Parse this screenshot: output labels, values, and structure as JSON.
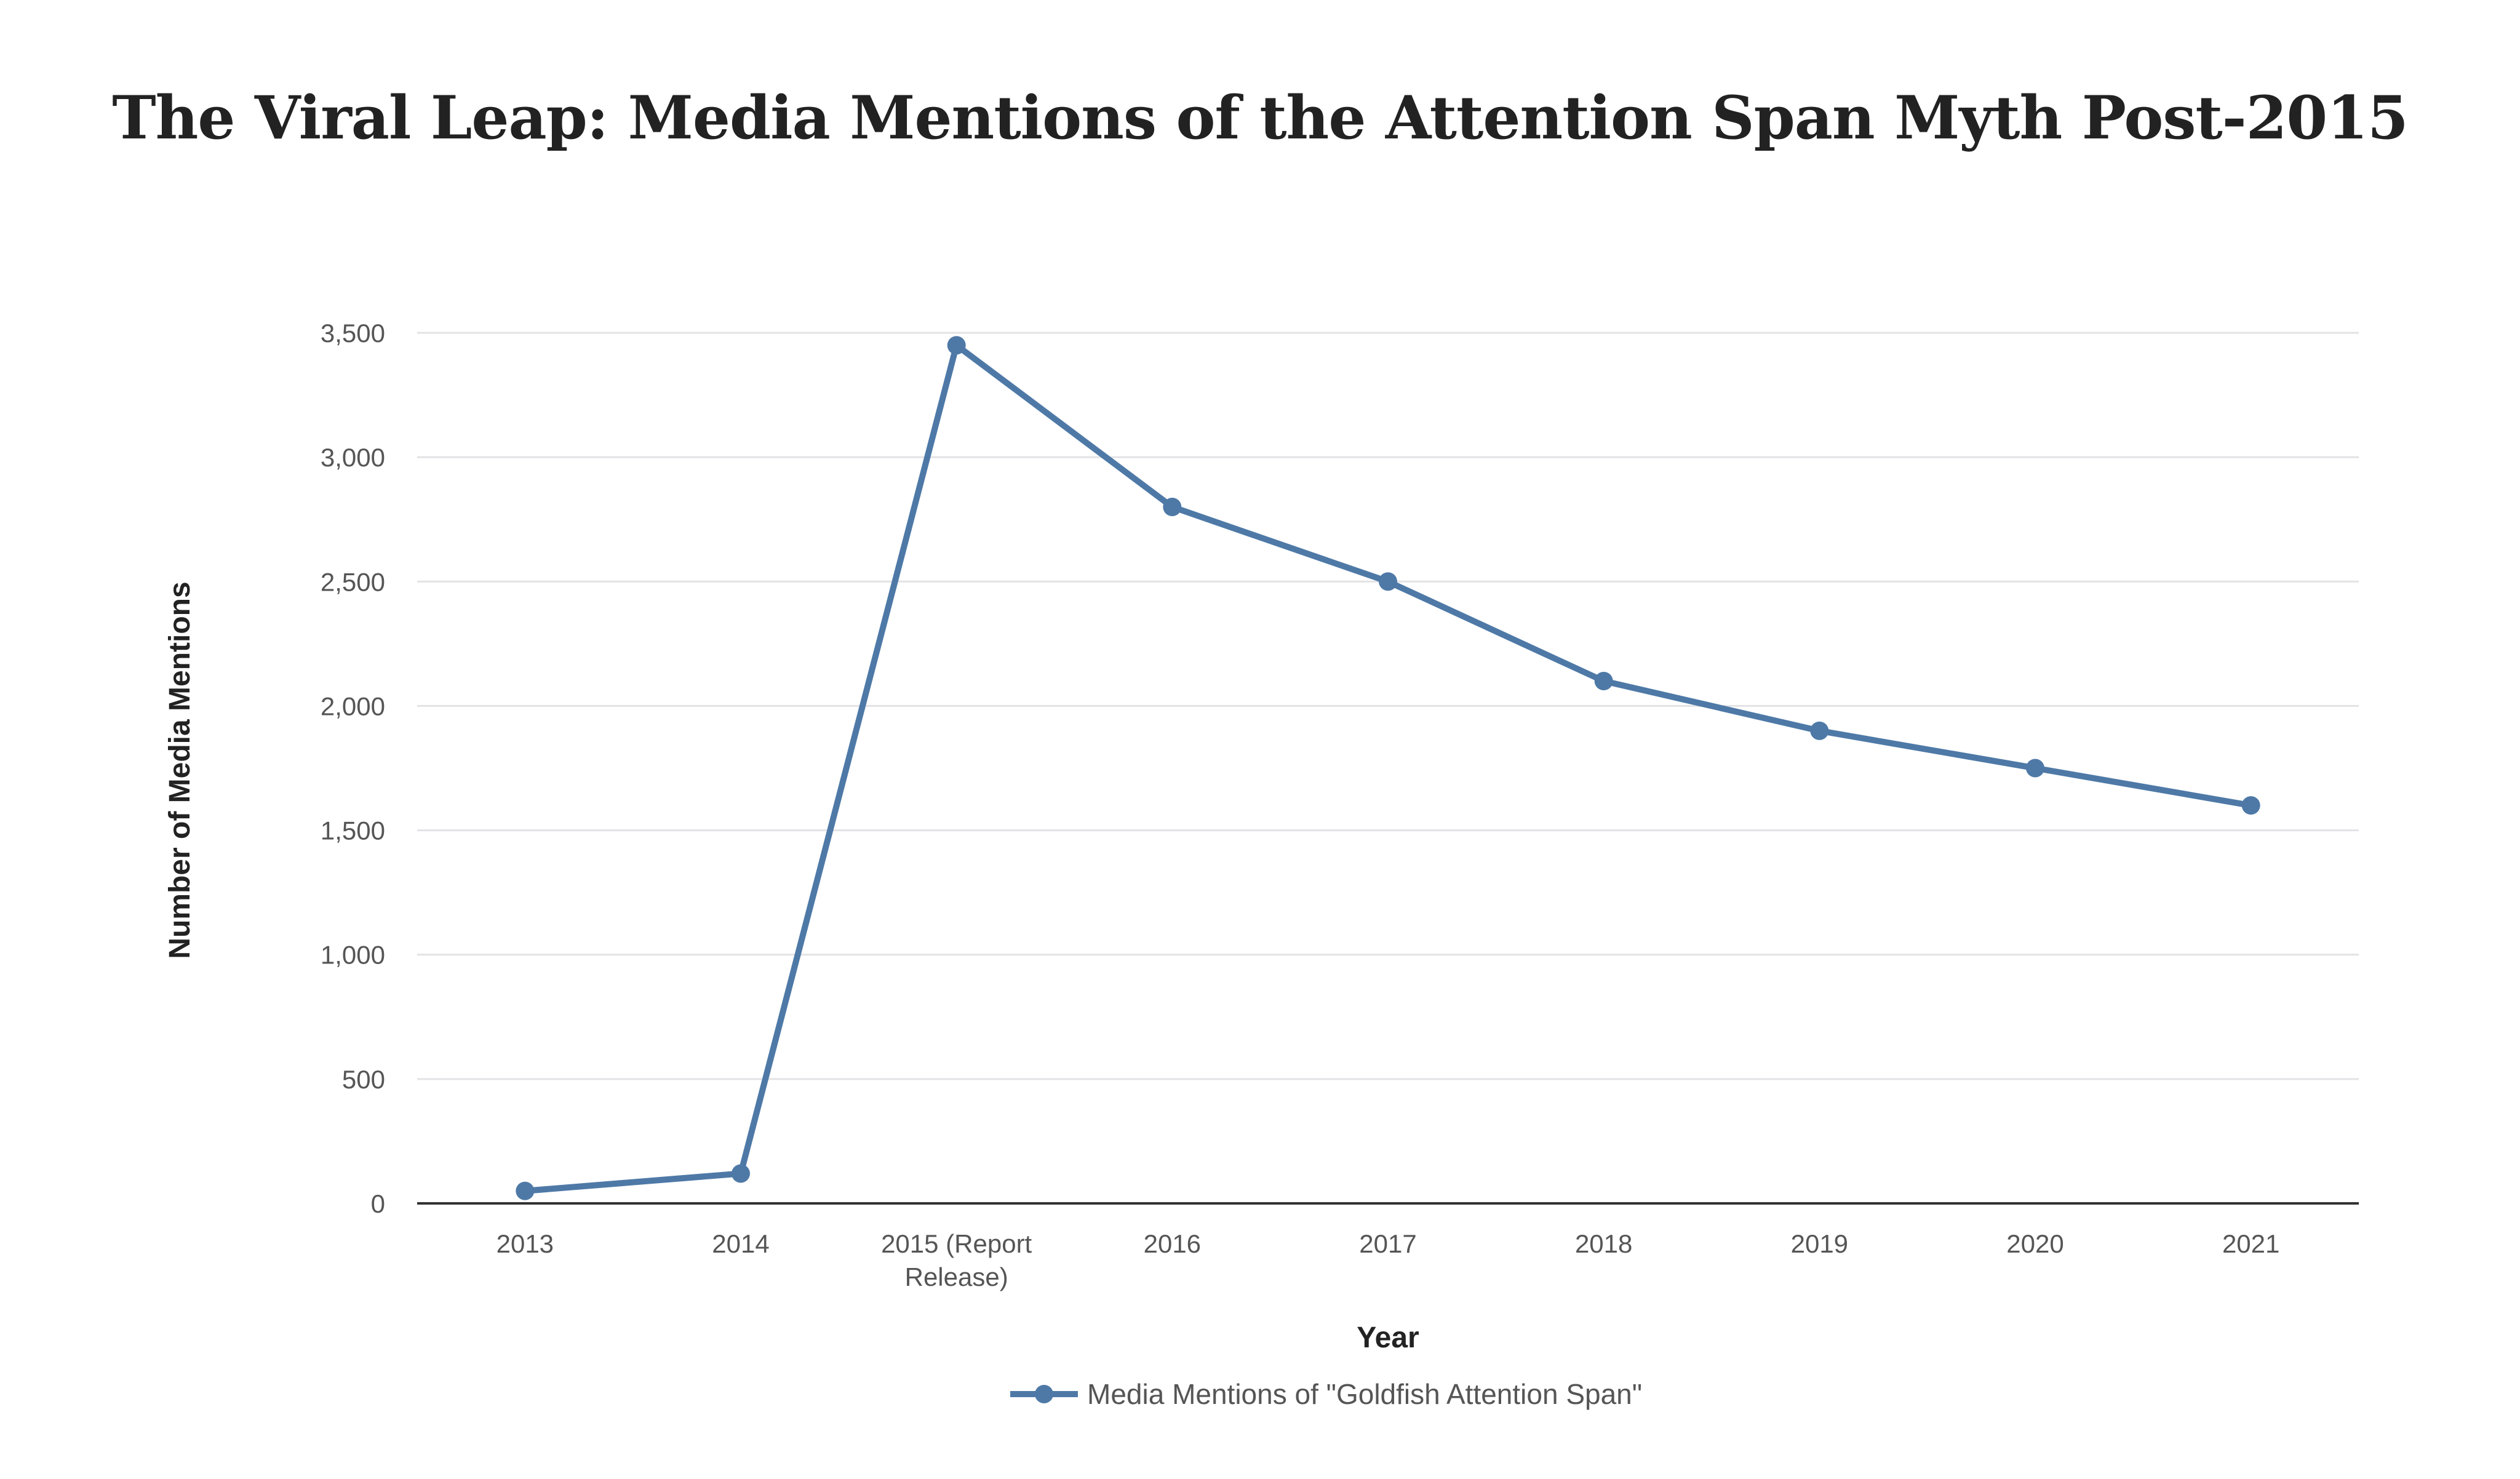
{
  "chart_data": {
    "type": "line",
    "title": "The Viral Leap: Media Mentions of the Attention Span Myth Post-2015",
    "xlabel": "Year",
    "ylabel": "Number of Media Mentions",
    "categories": [
      "2013",
      "2014",
      "2015 (Report Release)",
      "2016",
      "2017",
      "2018",
      "2019",
      "2020",
      "2021"
    ],
    "category_lines": [
      [
        "2013"
      ],
      [
        "2014"
      ],
      [
        "2015 (Report",
        "Release)"
      ],
      [
        "2016"
      ],
      [
        "2017"
      ],
      [
        "2018"
      ],
      [
        "2019"
      ],
      [
        "2020"
      ],
      [
        "2021"
      ]
    ],
    "series": [
      {
        "name": "Media Mentions of \"Goldfish Attention Span\"",
        "color": "#4e79a7",
        "values": [
          50,
          120,
          3450,
          2800,
          2500,
          2100,
          1900,
          1750,
          1600
        ]
      }
    ],
    "ylim": [
      0,
      3500
    ],
    "yticks": [
      0,
      500,
      1000,
      1500,
      2000,
      2500,
      3000,
      3500
    ],
    "ytick_labels": [
      "0",
      "500",
      "1,000",
      "1,500",
      "2,000",
      "2,500",
      "3,000",
      "3,500"
    ],
    "grid": true,
    "legend_position": "bottom-center"
  }
}
